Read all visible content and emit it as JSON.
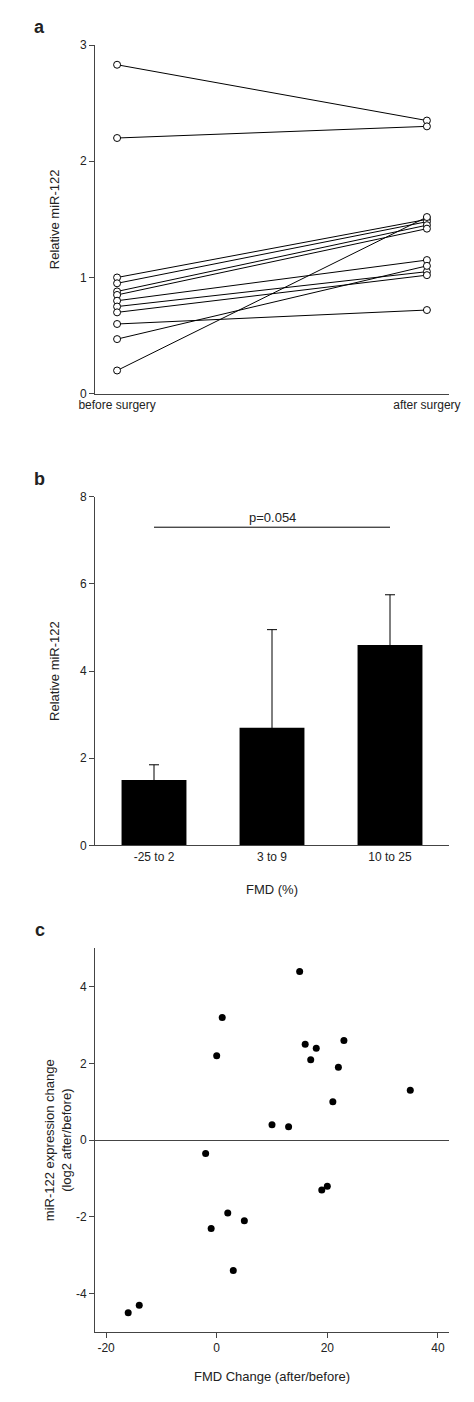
{
  "chart_data": [
    {
      "type": "line",
      "title": "a",
      "categories": [
        "before surgery",
        "after surgery"
      ],
      "series": [
        {
          "values": [
            2.83,
            2.35
          ]
        },
        {
          "values": [
            2.2,
            2.3
          ]
        },
        {
          "values": [
            1.0,
            1.5
          ]
        },
        {
          "values": [
            0.95,
            1.48
          ]
        },
        {
          "values": [
            0.88,
            1.45
          ]
        },
        {
          "values": [
            0.85,
            1.42
          ]
        },
        {
          "values": [
            0.8,
            1.15
          ]
        },
        {
          "values": [
            0.75,
            1.05
          ]
        },
        {
          "values": [
            0.7,
            1.02
          ]
        },
        {
          "values": [
            0.6,
            0.72
          ]
        },
        {
          "values": [
            0.47,
            1.1
          ]
        },
        {
          "values": [
            0.2,
            1.52
          ]
        }
      ],
      "color": "#000000",
      "marker": "circle",
      "ylabel": "Relative miR-122",
      "ylim": [
        0,
        3
      ],
      "yticks": [
        0,
        1,
        2,
        3
      ],
      "grid": false
    },
    {
      "type": "bar",
      "title": "b",
      "categories": [
        "-25 to 2",
        "3 to 9",
        "10 to 25"
      ],
      "values": [
        1.5,
        2.7,
        4.6
      ],
      "errors": [
        0.35,
        2.25,
        1.15
      ],
      "color": "#000000",
      "xlabel": "FMD (%)",
      "ylabel": "Relative miR-122",
      "ylim": [
        0,
        8
      ],
      "yticks": [
        0,
        2,
        4,
        6,
        8
      ],
      "annotations": [
        {
          "text": "p=0.054",
          "x": [
            "-25 to 2",
            "10 to 25"
          ],
          "y": 7.3
        }
      ],
      "grid": false
    },
    {
      "type": "scatter",
      "title": "c",
      "x": [
        -16,
        -14,
        -2,
        -1,
        0,
        1,
        2,
        3,
        5,
        10,
        13,
        15,
        16,
        17,
        18,
        19,
        20,
        21,
        22,
        23,
        35
      ],
      "values": [
        -4.5,
        -4.3,
        -0.35,
        -2.3,
        2.2,
        3.2,
        -1.9,
        -3.4,
        -2.1,
        0.4,
        0.35,
        4.4,
        2.5,
        2.1,
        2.4,
        -1.3,
        -1.2,
        1.0,
        1.9,
        2.6,
        1.3
      ],
      "color": "#000000",
      "xlabel": "FMD Change (after/before)",
      "ylabel": "miR-122 expression change\n(log2 after/before)",
      "xlim": [
        -22,
        42
      ],
      "xticks": [
        -20,
        0,
        20,
        40
      ],
      "ylim": [
        -5,
        5
      ],
      "yticks": [
        -4,
        -2,
        0,
        2,
        4
      ],
      "grid": false
    }
  ]
}
